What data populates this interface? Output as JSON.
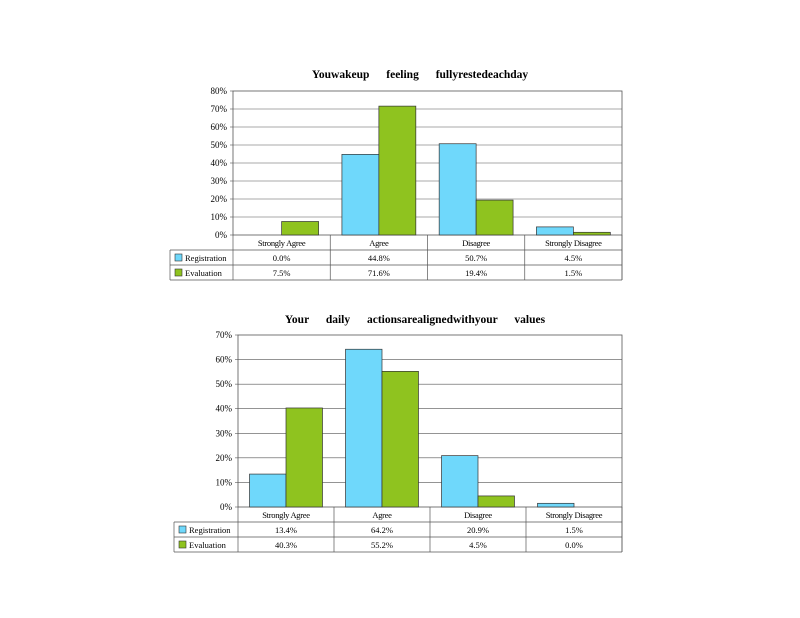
{
  "chart_data": [
    {
      "type": "bar",
      "title": "Youwakeup feeling fullyrestedeachday",
      "categories": [
        "Strongly Agree",
        "Agree",
        "Disagree",
        "Strongly Disagree"
      ],
      "ylim": [
        0,
        80
      ],
      "yticks": [
        "0%",
        "10%",
        "20%",
        "30%",
        "40%",
        "50%",
        "60%",
        "70%",
        "80%"
      ],
      "grid": true,
      "series": [
        {
          "name": "Registration",
          "color": "#6fd8fb",
          "values": [
            0.0,
            44.8,
            50.7,
            4.5
          ],
          "labels": [
            "0.0%",
            "44.8%",
            "50.7%",
            "4.5%"
          ]
        },
        {
          "name": "Evaluation",
          "color": "#8fc31f",
          "values": [
            7.5,
            71.6,
            19.4,
            1.5
          ],
          "labels": [
            "7.5%",
            "71.6%",
            "19.4%",
            "1.5%"
          ]
        }
      ]
    },
    {
      "type": "bar",
      "title": "Your daily actionsarealignedwithyour values",
      "categories": [
        "Strongly Agree",
        "Agree",
        "Disagree",
        "Strongly Disagree"
      ],
      "ylim": [
        0,
        70
      ],
      "yticks": [
        "0%",
        "10%",
        "20%",
        "30%",
        "40%",
        "50%",
        "60%",
        "70%"
      ],
      "grid": true,
      "series": [
        {
          "name": "Registration",
          "color": "#6fd8fb",
          "values": [
            13.4,
            64.2,
            20.9,
            1.5
          ],
          "labels": [
            "13.4%",
            "64.2%",
            "20.9%",
            "1.5%"
          ]
        },
        {
          "name": "Evaluation",
          "color": "#8fc31f",
          "values": [
            40.3,
            55.2,
            4.5,
            0.0
          ],
          "labels": [
            "40.3%",
            "55.2%",
            "4.5%",
            "0.0%"
          ]
        }
      ]
    }
  ]
}
